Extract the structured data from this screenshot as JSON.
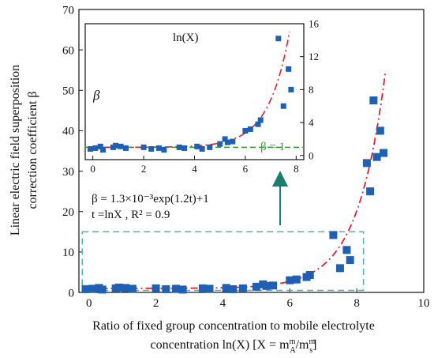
{
  "chart_data": [
    {
      "type": "scatter",
      "title": "",
      "xlabel_line1": "Ratio of fixed group concentration to mobile electrolyte",
      "xlabel_line2": "concentration ln(X)  [X = m",
      "xlabel_sup1": "m",
      "xlabel_sub1": "A",
      "xlabel_mid": "/m",
      "xlabel_sup2": "m",
      "xlabel_sub2": "s",
      "xlabel_end": "]",
      "ylabel_line1": "Linear electric field superposition",
      "ylabel_line2": "correction coefficient β",
      "xlim": [
        -0.3,
        10
      ],
      "ylim": [
        0,
        70
      ],
      "xticks": [
        0,
        2,
        4,
        6,
        8,
        10
      ],
      "yticks": [
        0,
        10,
        20,
        30,
        40,
        50,
        60,
        70
      ],
      "equation_line1": "β = 1.3×10⁻³exp(1.2t)+1",
      "equation_line2": "t =lnX , R² = 0.9",
      "marker_color": "#1f5fb4",
      "fit_color": "#e8202a",
      "box_color": "#4fb3b0",
      "arrow_color": "#1a7f6e",
      "highlight_range_x": [
        -0.2,
        8.2
      ],
      "highlight_range_y": [
        0.5,
        15
      ],
      "points": [
        [
          -0.1,
          0.8
        ],
        [
          0.1,
          0.9
        ],
        [
          0.3,
          1.1
        ],
        [
          0.4,
          0.7
        ],
        [
          0.8,
          1.0
        ],
        [
          0.9,
          1.2
        ],
        [
          1.1,
          1.1
        ],
        [
          1.3,
          0.9
        ],
        [
          2.0,
          1.0
        ],
        [
          2.3,
          0.8
        ],
        [
          2.6,
          0.9
        ],
        [
          2.8,
          0.7
        ],
        [
          3.4,
          1.0
        ],
        [
          3.6,
          0.9
        ],
        [
          4.1,
          1.1
        ],
        [
          4.3,
          0.8
        ],
        [
          4.6,
          1.0
        ],
        [
          5.0,
          1.4
        ],
        [
          5.2,
          2.0
        ],
        [
          5.3,
          1.6
        ],
        [
          5.5,
          1.7
        ],
        [
          6.0,
          3.0
        ],
        [
          6.2,
          3.2
        ],
        [
          6.5,
          3.8
        ],
        [
          6.6,
          4.3
        ],
        [
          7.3,
          14.2
        ],
        [
          7.5,
          6.0
        ],
        [
          7.7,
          10.5
        ],
        [
          7.8,
          8.0
        ],
        [
          8.3,
          32.0
        ],
        [
          8.4,
          25.0
        ],
        [
          8.5,
          47.5
        ],
        [
          8.6,
          33.5
        ],
        [
          8.7,
          40.0
        ],
        [
          8.8,
          34.5
        ]
      ],
      "fit": {
        "a": 0.0013,
        "b": 1.2,
        "c": 1
      }
    },
    {
      "type": "scatter",
      "inset": true,
      "xlabel": "ln(X)",
      "ylabel": "β",
      "xlim": [
        -0.3,
        8.3
      ],
      "ylim": [
        -0.5,
        16
      ],
      "xticks": [
        0,
        2,
        4,
        6,
        8
      ],
      "yticks": [
        0,
        4,
        8,
        12,
        16
      ],
      "baseline_label": "β = 1",
      "baseline_value": 1,
      "baseline_color": "#2ca02c",
      "points": [
        [
          -0.1,
          0.8
        ],
        [
          0.1,
          0.9
        ],
        [
          0.3,
          1.1
        ],
        [
          0.4,
          0.7
        ],
        [
          0.8,
          1.0
        ],
        [
          0.9,
          1.2
        ],
        [
          1.1,
          1.1
        ],
        [
          1.3,
          0.9
        ],
        [
          2.0,
          1.0
        ],
        [
          2.3,
          0.8
        ],
        [
          2.6,
          0.9
        ],
        [
          2.8,
          0.7
        ],
        [
          3.4,
          1.0
        ],
        [
          3.6,
          0.9
        ],
        [
          4.1,
          1.1
        ],
        [
          4.3,
          0.8
        ],
        [
          4.6,
          1.0
        ],
        [
          5.0,
          1.4
        ],
        [
          5.2,
          2.0
        ],
        [
          5.3,
          1.6
        ],
        [
          5.5,
          1.7
        ],
        [
          6.0,
          3.0
        ],
        [
          6.2,
          3.2
        ],
        [
          6.5,
          3.8
        ],
        [
          6.6,
          4.3
        ],
        [
          7.3,
          14.2
        ],
        [
          7.5,
          6.0
        ],
        [
          7.7,
          10.5
        ],
        [
          7.8,
          8.0
        ]
      ]
    }
  ]
}
